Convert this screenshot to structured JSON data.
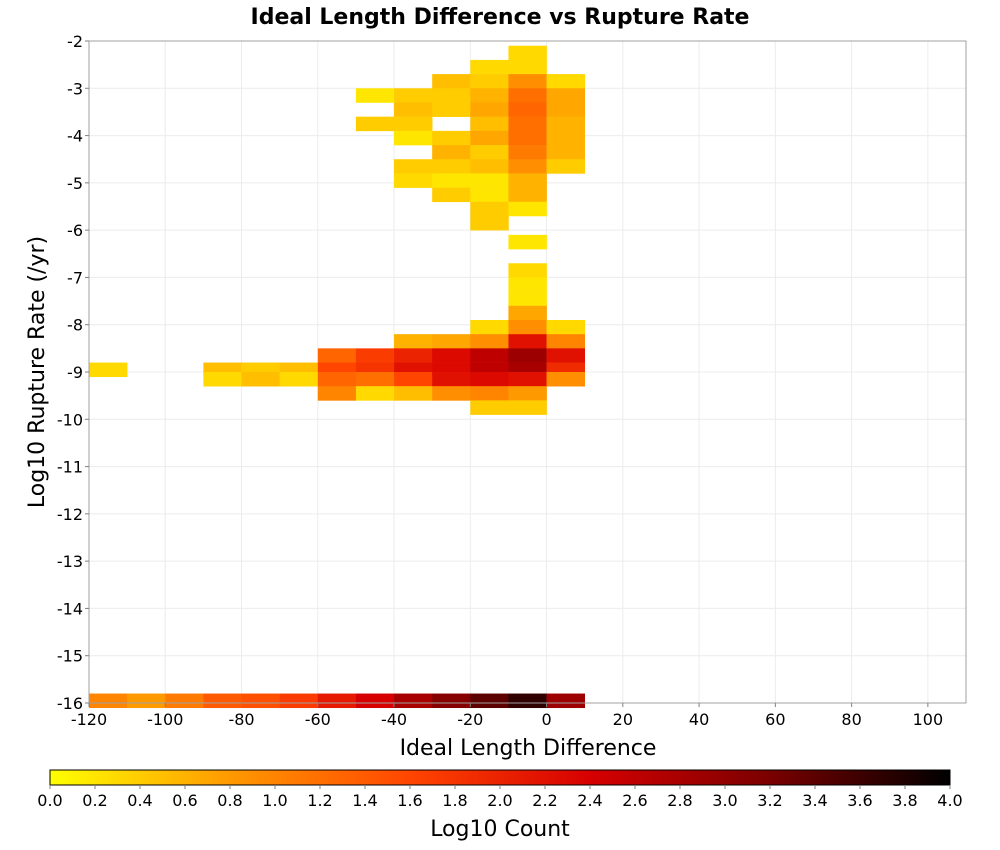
{
  "chart_data": {
    "type": "heatmap",
    "title": "Ideal Length Difference vs Rupture Rate",
    "xlabel": "Ideal Length Difference",
    "ylabel": "Log10 Rupture Rate (/yr)",
    "colorbar_label": "Log10 Count",
    "xlim": [
      -120,
      110
    ],
    "ylim": [
      -16,
      -2
    ],
    "x_ticks": [
      "-120",
      "-100",
      "-80",
      "-60",
      "-40",
      "-20",
      "0",
      "20",
      "40",
      "60",
      "80",
      "100"
    ],
    "x_tick_values": [
      -120,
      -100,
      -80,
      -60,
      -40,
      -20,
      0,
      20,
      40,
      60,
      80,
      100
    ],
    "y_ticks": [
      "-2",
      "-3",
      "-4",
      "-5",
      "-6",
      "-7",
      "-8",
      "-9",
      "-10",
      "-11",
      "-12",
      "-13",
      "-14",
      "-15",
      "-16"
    ],
    "y_tick_values": [
      -2,
      -3,
      -4,
      -5,
      -6,
      -7,
      -8,
      -9,
      -10,
      -11,
      -12,
      -13,
      -14,
      -15,
      -16
    ],
    "colorbar_ticks": [
      "0.0",
      "0.2",
      "0.4",
      "0.6",
      "0.8",
      "1.0",
      "1.2",
      "1.4",
      "1.6",
      "1.8",
      "2.0",
      "2.2",
      "2.4",
      "2.6",
      "2.8",
      "3.0",
      "3.2",
      "3.4",
      "3.6",
      "3.8",
      "4.0"
    ],
    "colorbar_range": [
      0,
      4
    ],
    "grid": true,
    "colormap": [
      "#ffff00",
      "#ff9900",
      "#ff4500",
      "#d60000",
      "#7a0000",
      "#000000"
    ],
    "x_bin_width": 10,
    "y_bin_height": 0.3,
    "cells": [
      {
        "x": -10,
        "y": -2.25,
        "v": 0.3
      },
      {
        "x": -20,
        "y": -2.55,
        "v": 0.3
      },
      {
        "x": -10,
        "y": -2.55,
        "v": 0.3
      },
      {
        "x": -30,
        "y": -2.85,
        "v": 0.5
      },
      {
        "x": -20,
        "y": -2.85,
        "v": 0.4
      },
      {
        "x": -10,
        "y": -2.85,
        "v": 0.9
      },
      {
        "x": 0,
        "y": -2.85,
        "v": 0.3
      },
      {
        "x": -50,
        "y": -3.15,
        "v": 0.2
      },
      {
        "x": -40,
        "y": -3.15,
        "v": 0.4
      },
      {
        "x": -30,
        "y": -3.15,
        "v": 0.4
      },
      {
        "x": -20,
        "y": -3.15,
        "v": 0.6
      },
      {
        "x": -10,
        "y": -3.15,
        "v": 1.2
      },
      {
        "x": 0,
        "y": -3.15,
        "v": 0.7
      },
      {
        "x": -40,
        "y": -3.45,
        "v": 0.5
      },
      {
        "x": -30,
        "y": -3.45,
        "v": 0.4
      },
      {
        "x": -20,
        "y": -3.45,
        "v": 0.7
      },
      {
        "x": -10,
        "y": -3.45,
        "v": 1.3
      },
      {
        "x": 0,
        "y": -3.45,
        "v": 0.7
      },
      {
        "x": -50,
        "y": -3.75,
        "v": 0.4
      },
      {
        "x": -40,
        "y": -3.75,
        "v": 0.4
      },
      {
        "x": -20,
        "y": -3.75,
        "v": 0.5
      },
      {
        "x": -10,
        "y": -3.75,
        "v": 1.2
      },
      {
        "x": 0,
        "y": -3.75,
        "v": 0.6
      },
      {
        "x": -40,
        "y": -4.05,
        "v": 0.2
      },
      {
        "x": -30,
        "y": -4.05,
        "v": 0.4
      },
      {
        "x": -20,
        "y": -4.05,
        "v": 0.7
      },
      {
        "x": -10,
        "y": -4.05,
        "v": 1.2
      },
      {
        "x": 0,
        "y": -4.05,
        "v": 0.6
      },
      {
        "x": -30,
        "y": -4.35,
        "v": 0.6
      },
      {
        "x": -20,
        "y": -4.35,
        "v": 0.4
      },
      {
        "x": -10,
        "y": -4.35,
        "v": 1.1
      },
      {
        "x": 0,
        "y": -4.35,
        "v": 0.6
      },
      {
        "x": -40,
        "y": -4.65,
        "v": 0.4
      },
      {
        "x": -30,
        "y": -4.65,
        "v": 0.4
      },
      {
        "x": -20,
        "y": -4.65,
        "v": 0.5
      },
      {
        "x": -10,
        "y": -4.65,
        "v": 0.9
      },
      {
        "x": 0,
        "y": -4.65,
        "v": 0.4
      },
      {
        "x": -40,
        "y": -4.95,
        "v": 0.3
      },
      {
        "x": -30,
        "y": -4.95,
        "v": 0.2
      },
      {
        "x": -20,
        "y": -4.95,
        "v": 0.2
      },
      {
        "x": -10,
        "y": -4.95,
        "v": 0.6
      },
      {
        "x": -30,
        "y": -5.25,
        "v": 0.4
      },
      {
        "x": -20,
        "y": -5.25,
        "v": 0.2
      },
      {
        "x": -10,
        "y": -5.25,
        "v": 0.6
      },
      {
        "x": -20,
        "y": -5.55,
        "v": 0.4
      },
      {
        "x": -10,
        "y": -5.55,
        "v": 0.2
      },
      {
        "x": -20,
        "y": -5.85,
        "v": 0.4
      },
      {
        "x": -10,
        "y": -6.25,
        "v": 0.2
      },
      {
        "x": -10,
        "y": -6.85,
        "v": 0.3
      },
      {
        "x": -10,
        "y": -7.15,
        "v": 0.2
      },
      {
        "x": -10,
        "y": -7.45,
        "v": 0.2
      },
      {
        "x": -10,
        "y": -7.75,
        "v": 0.7
      },
      {
        "x": -20,
        "y": -8.05,
        "v": 0.3
      },
      {
        "x": -10,
        "y": -8.05,
        "v": 0.9
      },
      {
        "x": 0,
        "y": -8.05,
        "v": 0.3
      },
      {
        "x": -40,
        "y": -8.35,
        "v": 0.6
      },
      {
        "x": -30,
        "y": -8.35,
        "v": 0.7
      },
      {
        "x": -20,
        "y": -8.35,
        "v": 0.9
      },
      {
        "x": -10,
        "y": -8.35,
        "v": 2.2
      },
      {
        "x": 0,
        "y": -8.35,
        "v": 1.0
      },
      {
        "x": -60,
        "y": -8.65,
        "v": 1.3
      },
      {
        "x": -50,
        "y": -8.65,
        "v": 1.7
      },
      {
        "x": -40,
        "y": -8.65,
        "v": 2.0
      },
      {
        "x": -30,
        "y": -8.65,
        "v": 2.3
      },
      {
        "x": -20,
        "y": -8.65,
        "v": 2.6
      },
      {
        "x": -10,
        "y": -8.65,
        "v": 2.9
      },
      {
        "x": 0,
        "y": -8.65,
        "v": 2.2
      },
      {
        "x": -120,
        "y": -8.95,
        "v": 0.3
      },
      {
        "x": -90,
        "y": -8.95,
        "v": 0.5
      },
      {
        "x": -80,
        "y": -8.95,
        "v": 0.4
      },
      {
        "x": -70,
        "y": -8.95,
        "v": 0.5
      },
      {
        "x": -60,
        "y": -8.95,
        "v": 1.6
      },
      {
        "x": -50,
        "y": -8.95,
        "v": 1.8
      },
      {
        "x": -40,
        "y": -8.95,
        "v": 2.2
      },
      {
        "x": -30,
        "y": -8.95,
        "v": 2.3
      },
      {
        "x": -20,
        "y": -8.95,
        "v": 2.6
      },
      {
        "x": -10,
        "y": -8.95,
        "v": 2.8
      },
      {
        "x": 0,
        "y": -8.95,
        "v": 1.9
      },
      {
        "x": -90,
        "y": -9.15,
        "v": 0.3
      },
      {
        "x": -80,
        "y": -9.15,
        "v": 0.5
      },
      {
        "x": -70,
        "y": -9.15,
        "v": 0.3
      },
      {
        "x": -60,
        "y": -9.15,
        "v": 1.3
      },
      {
        "x": -50,
        "y": -9.15,
        "v": 1.2
      },
      {
        "x": -40,
        "y": -9.15,
        "v": 1.6
      },
      {
        "x": -30,
        "y": -9.15,
        "v": 2.2
      },
      {
        "x": -20,
        "y": -9.15,
        "v": 2.3
      },
      {
        "x": -10,
        "y": -9.15,
        "v": 2.2
      },
      {
        "x": 0,
        "y": -9.15,
        "v": 0.9
      },
      {
        "x": -60,
        "y": -9.45,
        "v": 1.0
      },
      {
        "x": -50,
        "y": -9.45,
        "v": 0.3
      },
      {
        "x": -40,
        "y": -9.45,
        "v": 0.5
      },
      {
        "x": -30,
        "y": -9.45,
        "v": 0.9
      },
      {
        "x": -20,
        "y": -9.45,
        "v": 1.0
      },
      {
        "x": -10,
        "y": -9.45,
        "v": 0.8
      },
      {
        "x": -20,
        "y": -9.75,
        "v": 0.4
      },
      {
        "x": -10,
        "y": -9.75,
        "v": 0.4
      },
      {
        "x": -120,
        "y": -15.95,
        "v": 1.0
      },
      {
        "x": -110,
        "y": -15.95,
        "v": 0.8
      },
      {
        "x": -100,
        "y": -15.95,
        "v": 1.1
      },
      {
        "x": -90,
        "y": -15.95,
        "v": 1.4
      },
      {
        "x": -80,
        "y": -15.95,
        "v": 1.5
      },
      {
        "x": -70,
        "y": -15.95,
        "v": 1.7
      },
      {
        "x": -60,
        "y": -15.95,
        "v": 2.1
      },
      {
        "x": -50,
        "y": -15.95,
        "v": 2.4
      },
      {
        "x": -40,
        "y": -15.95,
        "v": 2.8
      },
      {
        "x": -30,
        "y": -15.95,
        "v": 3.1
      },
      {
        "x": -20,
        "y": -15.95,
        "v": 3.4
      },
      {
        "x": -10,
        "y": -15.95,
        "v": 3.7
      },
      {
        "x": 0,
        "y": -15.95,
        "v": 2.9
      }
    ]
  }
}
